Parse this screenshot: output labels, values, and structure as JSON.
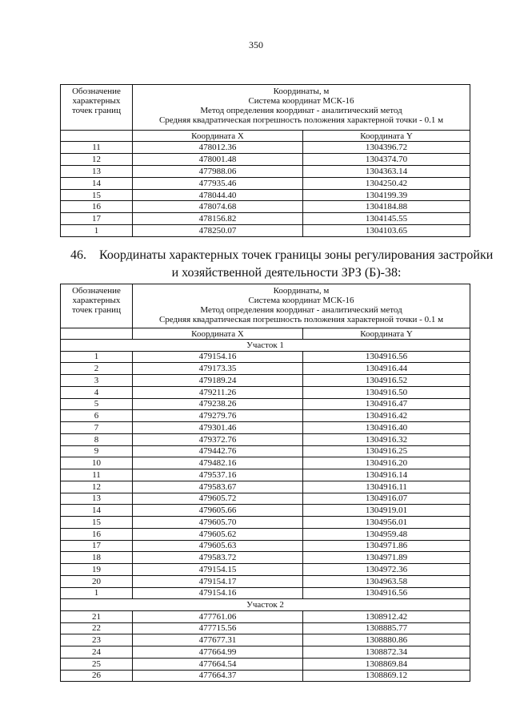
{
  "page_number": "350",
  "table1": {
    "header": {
      "point_lines": [
        "Обозначение",
        "характерных",
        "точек границ"
      ],
      "coord_lines": [
        "Координаты, м",
        "Система координат МСК-16",
        "Метод определения координат - аналитический метод",
        "Средняя квадратическая погрешность положения характерной точки - 0.1 м"
      ]
    },
    "col_x": "Координата X",
    "col_y": "Координата Y",
    "rows": [
      [
        "11",
        "478012.36",
        "1304396.72"
      ],
      [
        "12",
        "478001.48",
        "1304374.70"
      ],
      [
        "13",
        "477988.06",
        "1304363.14"
      ],
      [
        "14",
        "477935.46",
        "1304250.42"
      ],
      [
        "15",
        "478044.40",
        "1304199.39"
      ],
      [
        "16",
        "478074.68",
        "1304184.88"
      ],
      [
        "17",
        "478156.82",
        "1304145.55"
      ],
      [
        "1",
        "478250.07",
        "1304103.65"
      ]
    ]
  },
  "heading": {
    "number": "46.",
    "lines": [
      "Координаты характерных точек границы зоны регулирования застройки",
      "и хозяйственной деятельности ЗРЗ (Б)-38:"
    ]
  },
  "table2": {
    "header": {
      "point_lines": [
        "Обозначение",
        "характерных",
        "точек границ"
      ],
      "coord_lines": [
        "Координаты, м",
        "Система координат МСК-16",
        "Метод определения координат - аналитический метод",
        "Средняя квадратическая погрешность положения характерной точки - 0.1 м"
      ]
    },
    "col_x": "Координата X",
    "col_y": "Координата Y",
    "sections": [
      {
        "title": "Участок 1",
        "rows": [
          [
            "1",
            "479154.16",
            "1304916.56"
          ],
          [
            "2",
            "479173.35",
            "1304916.44"
          ],
          [
            "3",
            "479189.24",
            "1304916.52"
          ],
          [
            "4",
            "479211.26",
            "1304916.50"
          ],
          [
            "5",
            "479238.26",
            "1304916.47"
          ],
          [
            "6",
            "479279.76",
            "1304916.42"
          ],
          [
            "7",
            "479301.46",
            "1304916.40"
          ],
          [
            "8",
            "479372.76",
            "1304916.32"
          ],
          [
            "9",
            "479442.76",
            "1304916.25"
          ],
          [
            "10",
            "479482.16",
            "1304916.20"
          ],
          [
            "11",
            "479537.16",
            "1304916.14"
          ],
          [
            "12",
            "479583.67",
            "1304916.11"
          ],
          [
            "13",
            "479605.72",
            "1304916.07"
          ],
          [
            "14",
            "479605.66",
            "1304919.01"
          ],
          [
            "15",
            "479605.70",
            "1304956.01"
          ],
          [
            "16",
            "479605.62",
            "1304959.48"
          ],
          [
            "17",
            "479605.63",
            "1304971.86"
          ],
          [
            "18",
            "479583.72",
            "1304971.89"
          ],
          [
            "19",
            "479154.15",
            "1304972.36"
          ],
          [
            "20",
            "479154.17",
            "1304963.58"
          ],
          [
            "1",
            "479154.16",
            "1304916.56"
          ]
        ]
      },
      {
        "title": "Участок 2",
        "rows": [
          [
            "21",
            "477761.06",
            "1308912.42"
          ],
          [
            "22",
            "477715.56",
            "1308885.77"
          ],
          [
            "23",
            "477677.31",
            "1308880.86"
          ],
          [
            "24",
            "477664.99",
            "1308872.34"
          ],
          [
            "25",
            "477664.54",
            "1308869.84"
          ],
          [
            "26",
            "477664.37",
            "1308869.12"
          ]
        ]
      }
    ]
  }
}
